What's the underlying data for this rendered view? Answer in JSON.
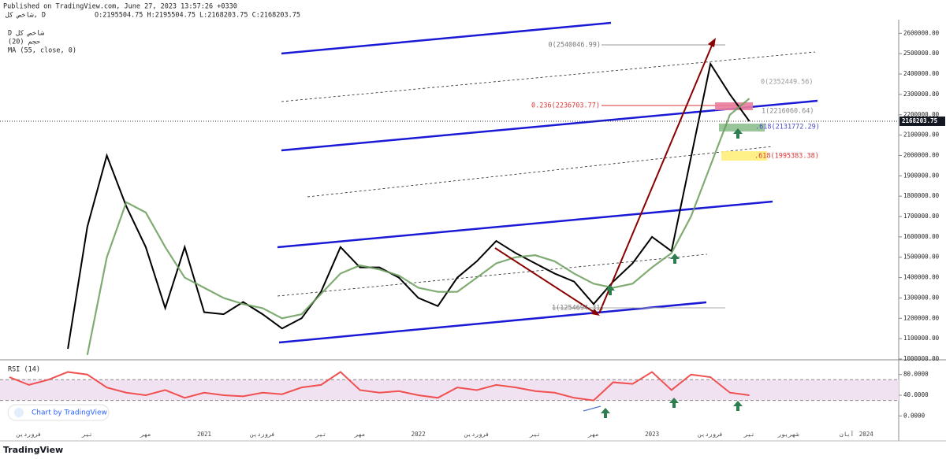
{
  "header": {
    "published": "Published on TradingView.com, June 27, 2023 13:57:26 +0330",
    "symbol": "شاخص کل, D",
    "ohlc": "O:2195504.75 H:2195504.75 L:2168203.75 C:2168203.75",
    "legend": [
      "D شاخص کل",
      "(20) حجم",
      "MA (55, close, 0)"
    ]
  },
  "chart_data": [
    {
      "type": "line",
      "categories": [
        null,
        "فروردین",
        null,
        null,
        "تیر",
        null,
        null,
        "مهر",
        null,
        null,
        "2021",
        null,
        null,
        "فروردین",
        null,
        null,
        "تیر",
        null,
        "مهر",
        null,
        null,
        "2022",
        null,
        null,
        "فروردین",
        null,
        null,
        "تیر",
        null,
        null,
        "مهر",
        null,
        null,
        "2023",
        null,
        null,
        "فروردین",
        null,
        "تیر",
        null,
        "شهریور",
        null,
        null,
        "آبان",
        "2024",
        null
      ],
      "series": [
        {
          "name": "شاخص کل",
          "color": "#000000",
          "values": [
            null,
            null,
            null,
            1050000,
            1650000,
            2000000,
            1750000,
            1550000,
            1250000,
            1550000,
            1230000,
            1220000,
            1280000,
            1220000,
            1150000,
            1200000,
            1330000,
            1550000,
            1450000,
            1450000,
            1400000,
            1300000,
            1260000,
            1400000,
            1480000,
            1580000,
            1520000,
            1470000,
            1420000,
            1380000,
            1270000,
            1380000,
            1470000,
            1600000,
            1530000,
            1990000,
            2450000,
            2300000,
            2168203.75,
            null,
            null,
            null,
            null,
            null,
            null,
            null
          ]
        },
        {
          "name": "MA (55, close, 0)",
          "color": "#6a9e5a",
          "values": [
            null,
            null,
            null,
            null,
            1020000,
            1500000,
            1770000,
            1720000,
            1550000,
            1400000,
            1350000,
            1300000,
            1270000,
            1250000,
            1200000,
            1220000,
            1320000,
            1420000,
            1460000,
            1440000,
            1410000,
            1350000,
            1330000,
            1330000,
            1400000,
            1470000,
            1500000,
            1510000,
            1480000,
            1420000,
            1370000,
            1350000,
            1370000,
            1450000,
            1520000,
            1700000,
            1950000,
            2200000,
            2280000,
            null,
            null,
            null,
            null,
            null,
            null,
            null
          ]
        }
      ],
      "ylim": [
        1000000,
        2640000
      ],
      "yticks": [
        {
          "value": 1000000,
          "label": "1000000.00"
        },
        {
          "value": 1100000,
          "label": "1100000.00"
        },
        {
          "value": 1200000,
          "label": "1200000.00"
        },
        {
          "value": 1300000,
          "label": "1300000.00"
        },
        {
          "value": 1400000,
          "label": "1400000.00"
        },
        {
          "value": 1500000,
          "label": "1500000.00"
        },
        {
          "value": 1600000,
          "label": "1600000.00"
        },
        {
          "value": 1700000,
          "label": "1700000.00"
        },
        {
          "value": 1800000,
          "label": "1800000.00"
        },
        {
          "value": 1900000,
          "label": "1900000.00"
        },
        {
          "value": 2000000,
          "label": "2000000.00"
        },
        {
          "value": 2100000,
          "label": "2100000.00"
        },
        {
          "value": 2200000,
          "label": "2200000.00"
        },
        {
          "value": 2300000,
          "label": "2300000.00"
        },
        {
          "value": 2400000,
          "label": "2400000.00"
        },
        {
          "value": 2500000,
          "label": "2500000.00"
        },
        {
          "value": 2600000,
          "label": "2600000.00"
        }
      ],
      "last_price": {
        "value": 2168203.75,
        "label": "2168203.75"
      }
    },
    {
      "type": "line",
      "title": "RSI (14)",
      "series": [
        {
          "name": "RSI (14)",
          "color": "#f05050",
          "values": [
            75,
            60,
            70,
            85,
            80,
            55,
            45,
            40,
            50,
            35,
            45,
            40,
            38,
            45,
            42,
            55,
            60,
            85,
            50,
            45,
            48,
            40,
            35,
            55,
            50,
            60,
            55,
            48,
            45,
            35,
            30,
            65,
            62,
            85,
            50,
            80,
            75,
            45,
            40,
            null,
            null,
            null,
            null,
            null,
            null,
            null
          ]
        }
      ],
      "ylim": [
        -30,
        107
      ],
      "band": [
        30,
        70
      ],
      "band_color": "#f1e2f1",
      "yticks": [
        {
          "value": 0,
          "label": "0.0000"
        },
        {
          "value": 40,
          "label": "40.0000"
        },
        {
          "value": 80,
          "label": "80.0000"
        }
      ]
    }
  ],
  "annotations": [
    "0(2540046.99)",
    "0(2352449.56)",
    "0.236(2236703.77)",
    "1(2216060.64)",
    ".618(2131772.29)",
    ".618(1995383.38)",
    "1(1254694.31)"
  ],
  "footer": {
    "badge": "Chart by TradingView",
    "brand": "TradingView"
  }
}
